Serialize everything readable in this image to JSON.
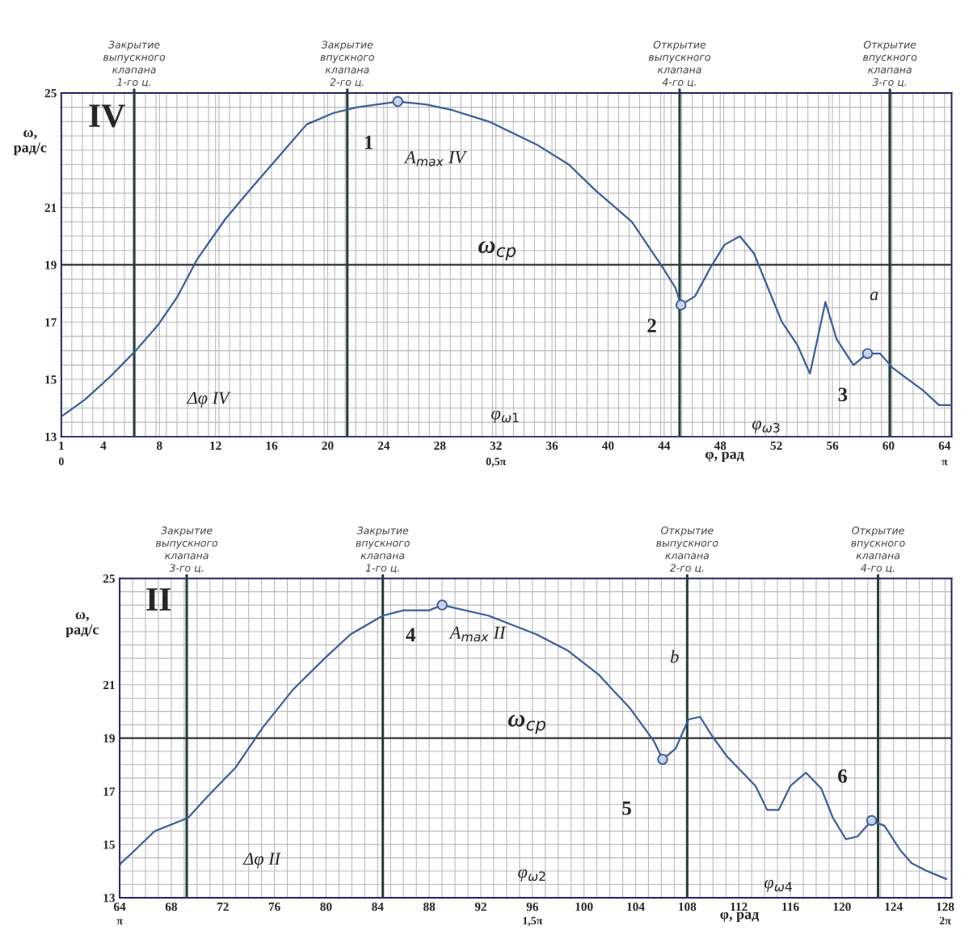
{
  "chart_data": [
    {
      "type": "line",
      "xlabel": "φ, рад",
      "ylabel": "ω,\nрад/с",
      "grid": true,
      "xlim": [
        1,
        64.5
      ],
      "ylim": [
        13,
        25
      ],
      "xticks": [
        1,
        4,
        8,
        12,
        16,
        20,
        24,
        28,
        32,
        36,
        40,
        44,
        48,
        52,
        56,
        60,
        64
      ],
      "yticks": [
        13,
        15,
        17,
        19,
        21,
        25
      ],
      "series": [
        {
          "color": "#3b5e9c",
          "marker": "none",
          "line_style": "solid",
          "x": [
            1,
            2.7,
            4.5,
            6.3,
            7.9,
            9.3,
            10.7,
            12.7,
            14.6,
            16.9,
            18.5,
            20.4,
            22.1,
            25,
            27,
            28.9,
            31.5,
            34.9,
            37.2,
            39.1,
            41.7,
            43.9,
            44.8,
            45.2,
            46.2,
            47.3,
            48.3,
            49.4,
            50.4,
            52.4,
            53.5,
            54.4,
            55.5,
            56.3,
            57.5,
            58.5,
            59.4,
            60.3,
            61.4,
            62.5,
            63.6,
            64.4
          ],
          "values": [
            13.7,
            14.3,
            15.1,
            16.0,
            16.9,
            17.9,
            19.2,
            20.6,
            21.7,
            23.0,
            23.9,
            24.3,
            24.5,
            24.7,
            24.6,
            24.4,
            24.0,
            23.2,
            22.5,
            21.6,
            20.5,
            18.9,
            18.2,
            17.6,
            17.9,
            18.9,
            19.7,
            20.0,
            19.4,
            17.0,
            16.2,
            15.2,
            17.7,
            16.4,
            15.5,
            15.9,
            15.9,
            15.4,
            15.0,
            14.6,
            14.1,
            14.1
          ]
        },
        {
          "type": "scatter",
          "color": "#3b5e9c",
          "marker": "circle",
          "x": [
            25,
            45.2,
            58.5
          ],
          "values": [
            24.7,
            17.6,
            15.9
          ]
        }
      ],
      "ref_lines": [
        {
          "axis": "x",
          "value": 6.2,
          "label": "Закрытие\nвыпускного\nклапана\n1-го ц.",
          "color": "#26403c"
        },
        {
          "axis": "x",
          "value": 21.4,
          "label": "Закрытие\nвпускного\nклапана\n2-го ц.",
          "color": "#26403c"
        },
        {
          "axis": "x",
          "value": 45.1,
          "label": "Открытие\nвыпускного\nклапана\n4-го ц.",
          "color": "#26403c"
        },
        {
          "axis": "x",
          "value": 60.1,
          "label": "Открытие\nвпускного\nклапана\n3-го ц.",
          "color": "#26403c"
        },
        {
          "axis": "y",
          "value": 19,
          "label": "ω$_{ср}$",
          "color": "#333333"
        }
      ],
      "annotations": [
        "IV",
        {
          "text": "1",
          "x": 25,
          "y": 24.7
        },
        "A$_{max}$ IV",
        {
          "text": "2",
          "x": 45.2,
          "y": 17.6
        },
        {
          "text": "3",
          "x": 58.5,
          "y": 15.9
        },
        "a",
        "Δφ IV",
        "φ$_{ω1}$",
        "φ$_{ω3}$",
        "0",
        "0,5π",
        "π"
      ]
    },
    {
      "type": "line",
      "xlabel": "φ, рад",
      "ylabel": "ω,\nрад/с",
      "grid": true,
      "xlim": [
        64,
        128.5
      ],
      "ylim": [
        13,
        25
      ],
      "xticks": [
        64,
        68,
        72,
        76,
        80,
        84,
        88,
        92,
        96,
        100,
        104,
        108,
        112,
        116,
        120,
        124,
        128
      ],
      "yticks": [
        13,
        15,
        17,
        19,
        21,
        25
      ],
      "series": [
        {
          "color": "#3b5e9c",
          "marker": "none",
          "line_style": "solid",
          "x": [
            64,
            64.1,
            65,
            66.7,
            69.3,
            70.8,
            73.0,
            75.1,
            77.4,
            79.9,
            81.9,
            84.4,
            86,
            88,
            89,
            92.6,
            96.3,
            98.7,
            101.1,
            103.6,
            105.4,
            106.1,
            107.1,
            108.1,
            109.0,
            109.9,
            111.1,
            113.3,
            114.2,
            115.1,
            116.0,
            117.2,
            118.4,
            119.3,
            120.3,
            121.2,
            122.3,
            123.3,
            124.5,
            125.4,
            126.6,
            128.1
          ],
          "values": [
            14.2,
            14.3,
            14.7,
            15.5,
            16.0,
            16.8,
            17.9,
            19.4,
            20.8,
            22.0,
            22.9,
            23.6,
            23.8,
            23.8,
            24.0,
            23.6,
            22.9,
            22.3,
            21.4,
            20.1,
            18.9,
            18.2,
            18.6,
            19.7,
            19.8,
            19.1,
            18.3,
            17.2,
            16.3,
            16.3,
            17.2,
            17.7,
            17.1,
            16.0,
            15.2,
            15.3,
            15.9,
            15.7,
            14.8,
            14.3,
            14.0,
            13.7
          ]
        },
        {
          "type": "scatter",
          "color": "#3b5e9c",
          "marker": "circle",
          "x": [
            89,
            106.1,
            122.3
          ],
          "values": [
            24.0,
            18.2,
            15.9
          ]
        }
      ],
      "ref_lines": [
        {
          "axis": "x",
          "value": 69.2,
          "label": "Закрытие\nвыпускного\nклапана\n3-го ц.",
          "color": "#26403c"
        },
        {
          "axis": "x",
          "value": 84.4,
          "label": "Закрытие\nвпускного\nклапана\n1-го ц.",
          "color": "#26403c"
        },
        {
          "axis": "x",
          "value": 108.0,
          "label": "Открытие\nвыпускного\nклапана\n2-го ц.",
          "color": "#26403c"
        },
        {
          "axis": "x",
          "value": 122.8,
          "label": "Открытие\nвпускного\nклапана\n4-го ц.",
          "color": "#26403c"
        },
        {
          "axis": "y",
          "value": 19,
          "label": "ω$_{ср}$",
          "color": "#333333"
        }
      ],
      "annotations": [
        "II",
        {
          "text": "4",
          "x": 89,
          "y": 24.0
        },
        "A$_{max}$ II",
        {
          "text": "5",
          "x": 106.1,
          "y": 18.2
        },
        {
          "text": "6",
          "x": 122.3,
          "y": 15.9
        },
        "b",
        "Δφ II",
        "φ$_{ω2}$",
        "φ$_{ω4}$",
        "π",
        "1,5π",
        "2π"
      ]
    }
  ]
}
